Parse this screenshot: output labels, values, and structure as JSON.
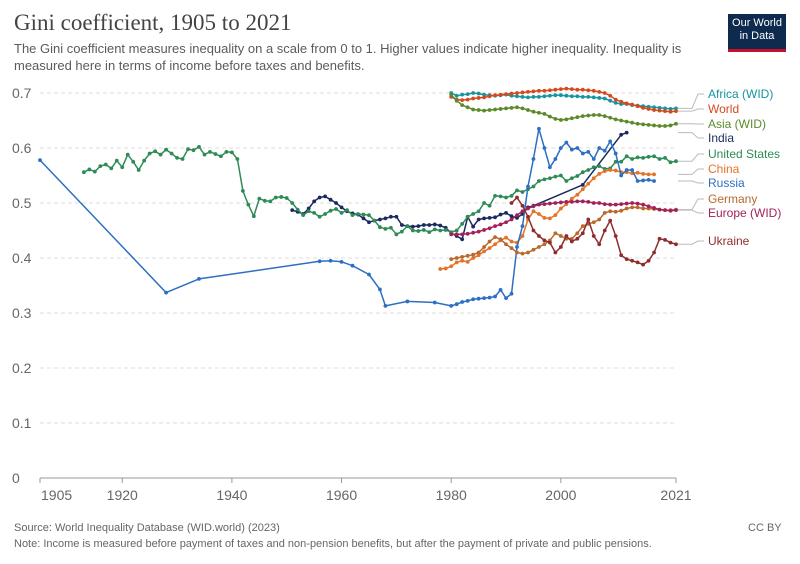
{
  "title": "Gini coefficient, 1905 to 2021",
  "subtitle": "The Gini coefficient measures inequality on a scale from 0 to 1. Higher values indicate higher inequality. Inequality is measured here in terms of income before taxes and benefits.",
  "logo": {
    "line1": "Our World",
    "line2": "in Data"
  },
  "source": "Source: World Inequality Database (WID.world) (2023)",
  "note": "Note: Income is measured before payment of taxes and non-pension benefits, but after the payment of private and public pensions.",
  "license": "CC BY",
  "chart_data": {
    "type": "line",
    "title": "Gini coefficient, 1905 to 2021",
    "xlabel": "",
    "ylabel": "",
    "xlim": [
      1905,
      2021
    ],
    "ylim": [
      0,
      0.7
    ],
    "x_ticks": [
      "1905",
      "1920",
      "1940",
      "1960",
      "1980",
      "2000",
      "2021"
    ],
    "x_tick_values": [
      1905,
      1920,
      1940,
      1960,
      1980,
      2000,
      2021
    ],
    "y_ticks": [
      "0",
      "0.1",
      "0.2",
      "0.3",
      "0.4",
      "0.5",
      "0.6",
      "0.7"
    ],
    "y_tick_values": [
      0,
      0.1,
      0.2,
      0.3,
      0.4,
      0.5,
      0.6,
      0.7
    ],
    "series": [
      {
        "name": "Africa (WID)",
        "color": "#16949f",
        "x": [
          1980,
          1981,
          1982,
          1983,
          1984,
          1985,
          1986,
          1987,
          1988,
          1989,
          1990,
          1991,
          1992,
          1993,
          1994,
          1995,
          1996,
          1997,
          1998,
          1999,
          2000,
          2001,
          2002,
          2003,
          2004,
          2005,
          2006,
          2007,
          2008,
          2009,
          2010,
          2011,
          2012,
          2013,
          2014,
          2015,
          2016,
          2017,
          2018,
          2019,
          2020,
          2021
        ],
        "y": [
          0.7,
          0.695,
          0.697,
          0.698,
          0.7,
          0.699,
          0.697,
          0.696,
          0.695,
          0.696,
          0.697,
          0.695,
          0.694,
          0.693,
          0.692,
          0.693,
          0.693,
          0.694,
          0.695,
          0.696,
          0.696,
          0.695,
          0.694,
          0.694,
          0.693,
          0.693,
          0.692,
          0.691,
          0.69,
          0.686,
          0.682,
          0.68,
          0.68,
          0.678,
          0.677,
          0.676,
          0.675,
          0.674,
          0.673,
          0.672,
          0.671,
          0.672
        ]
      },
      {
        "name": "World",
        "color": "#d44a1e",
        "x": [
          1980,
          1981,
          1982,
          1983,
          1984,
          1985,
          1986,
          1987,
          1988,
          1989,
          1990,
          1991,
          1992,
          1993,
          1994,
          1995,
          1996,
          1997,
          1998,
          1999,
          2000,
          2001,
          2002,
          2003,
          2004,
          2005,
          2006,
          2007,
          2008,
          2009,
          2010,
          2011,
          2012,
          2013,
          2014,
          2015,
          2016,
          2017,
          2018,
          2019,
          2020,
          2021
        ],
        "y": [
          0.693,
          0.688,
          0.687,
          0.688,
          0.69,
          0.691,
          0.692,
          0.694,
          0.696,
          0.697,
          0.698,
          0.699,
          0.7,
          0.701,
          0.702,
          0.703,
          0.704,
          0.704,
          0.705,
          0.706,
          0.707,
          0.708,
          0.707,
          0.706,
          0.706,
          0.705,
          0.704,
          0.702,
          0.7,
          0.695,
          0.688,
          0.684,
          0.681,
          0.679,
          0.676,
          0.673,
          0.671,
          0.669,
          0.668,
          0.667,
          0.666,
          0.667
        ]
      },
      {
        "name": "Asia (WID)",
        "color": "#5c8a2b",
        "x": [
          1980,
          1981,
          1982,
          1983,
          1984,
          1985,
          1986,
          1987,
          1988,
          1989,
          1990,
          1991,
          1992,
          1993,
          1994,
          1995,
          1996,
          1997,
          1998,
          1999,
          2000,
          2001,
          2002,
          2003,
          2004,
          2005,
          2006,
          2007,
          2008,
          2009,
          2010,
          2011,
          2012,
          2013,
          2014,
          2015,
          2016,
          2017,
          2018,
          2019,
          2020,
          2021
        ],
        "y": [
          0.697,
          0.686,
          0.678,
          0.674,
          0.67,
          0.669,
          0.668,
          0.669,
          0.67,
          0.671,
          0.672,
          0.673,
          0.674,
          0.672,
          0.669,
          0.666,
          0.664,
          0.662,
          0.657,
          0.653,
          0.651,
          0.652,
          0.654,
          0.656,
          0.658,
          0.659,
          0.66,
          0.66,
          0.658,
          0.655,
          0.652,
          0.65,
          0.648,
          0.646,
          0.644,
          0.643,
          0.642,
          0.641,
          0.64,
          0.64,
          0.641,
          0.644
        ]
      },
      {
        "name": "India",
        "color": "#1a2a5e",
        "x": [
          1951,
          1952,
          1953,
          1954,
          1955,
          1956,
          1957,
          1958,
          1959,
          1960,
          1961,
          1962,
          1963,
          1964,
          1965,
          1966,
          1967,
          1968,
          1969,
          1970,
          1971,
          1972,
          1973,
          1974,
          1975,
          1976,
          1977,
          1978,
          1979,
          1980,
          1981,
          1982,
          1983,
          1984,
          1985,
          1986,
          1987,
          1988,
          1989,
          1990,
          1991,
          1992,
          1993,
          1994,
          1995,
          2004,
          2011,
          2012
        ],
        "y": [
          0.487,
          0.484,
          0.48,
          0.49,
          0.503,
          0.51,
          0.512,
          0.506,
          0.5,
          0.492,
          0.485,
          0.481,
          0.479,
          0.472,
          0.465,
          0.468,
          0.47,
          0.472,
          0.475,
          0.475,
          0.46,
          0.458,
          0.457,
          0.458,
          0.46,
          0.46,
          0.461,
          0.459,
          0.455,
          0.445,
          0.44,
          0.434,
          0.475,
          0.457,
          0.47,
          0.472,
          0.473,
          0.474,
          0.479,
          0.482,
          0.476,
          0.473,
          0.48,
          0.492,
          0.495,
          0.533,
          0.624,
          0.628
        ]
      },
      {
        "name": "United States",
        "color": "#2e8b57",
        "x": [
          1913,
          1914,
          1915,
          1916,
          1917,
          1918,
          1919,
          1920,
          1921,
          1922,
          1923,
          1924,
          1925,
          1926,
          1927,
          1928,
          1929,
          1930,
          1931,
          1932,
          1933,
          1934,
          1935,
          1936,
          1937,
          1938,
          1939,
          1940,
          1941,
          1942,
          1943,
          1944,
          1945,
          1946,
          1947,
          1948,
          1949,
          1950,
          1951,
          1952,
          1953,
          1954,
          1955,
          1956,
          1957,
          1958,
          1959,
          1960,
          1961,
          1962,
          1963,
          1964,
          1965,
          1966,
          1967,
          1968,
          1969,
          1970,
          1971,
          1972,
          1973,
          1974,
          1975,
          1976,
          1977,
          1978,
          1979,
          1980,
          1981,
          1982,
          1983,
          1984,
          1985,
          1986,
          1987,
          1988,
          1989,
          1990,
          1991,
          1992,
          1993,
          1994,
          1995,
          1996,
          1997,
          1998,
          1999,
          2000,
          2001,
          2002,
          2003,
          2004,
          2005,
          2006,
          2007,
          2008,
          2009,
          2010,
          2011,
          2012,
          2013,
          2014,
          2015,
          2016,
          2017,
          2018,
          2019,
          2020,
          2021
        ],
        "y": [
          0.556,
          0.561,
          0.557,
          0.567,
          0.57,
          0.563,
          0.577,
          0.565,
          0.588,
          0.575,
          0.56,
          0.577,
          0.59,
          0.594,
          0.588,
          0.597,
          0.59,
          0.582,
          0.58,
          0.598,
          0.596,
          0.602,
          0.588,
          0.593,
          0.589,
          0.585,
          0.593,
          0.592,
          0.58,
          0.522,
          0.497,
          0.476,
          0.508,
          0.504,
          0.503,
          0.51,
          0.511,
          0.509,
          0.5,
          0.488,
          0.478,
          0.485,
          0.482,
          0.475,
          0.48,
          0.486,
          0.489,
          0.482,
          0.487,
          0.478,
          0.48,
          0.479,
          0.478,
          0.468,
          0.456,
          0.453,
          0.455,
          0.443,
          0.448,
          0.458,
          0.45,
          0.449,
          0.451,
          0.447,
          0.452,
          0.45,
          0.451,
          0.447,
          0.45,
          0.462,
          0.475,
          0.48,
          0.485,
          0.5,
          0.495,
          0.513,
          0.512,
          0.51,
          0.513,
          0.523,
          0.52,
          0.525,
          0.53,
          0.54,
          0.543,
          0.545,
          0.548,
          0.55,
          0.54,
          0.545,
          0.549,
          0.556,
          0.56,
          0.565,
          0.567,
          0.562,
          0.563,
          0.575,
          0.575,
          0.585,
          0.58,
          0.583,
          0.582,
          0.584,
          0.585,
          0.58,
          0.582,
          0.574,
          0.576
        ]
      },
      {
        "name": "China",
        "color": "#e37327",
        "x": [
          1978,
          1979,
          1980,
          1981,
          1982,
          1983,
          1984,
          1985,
          1986,
          1987,
          1988,
          1989,
          1990,
          1991,
          1992,
          1993,
          1994,
          1995,
          1996,
          1997,
          1998,
          1999,
          2000,
          2001,
          2002,
          2003,
          2004,
          2005,
          2006,
          2007,
          2008,
          2009,
          2010,
          2011,
          2012,
          2013,
          2014,
          2015,
          2016,
          2017
        ],
        "y": [
          0.38,
          0.381,
          0.385,
          0.392,
          0.395,
          0.393,
          0.4,
          0.405,
          0.412,
          0.418,
          0.425,
          0.432,
          0.437,
          0.43,
          0.428,
          0.44,
          0.47,
          0.485,
          0.48,
          0.473,
          0.472,
          0.478,
          0.49,
          0.498,
          0.508,
          0.515,
          0.525,
          0.535,
          0.545,
          0.553,
          0.558,
          0.56,
          0.559,
          0.556,
          0.556,
          0.554,
          0.555,
          0.553,
          0.552,
          0.552
        ]
      },
      {
        "name": "Russia",
        "color": "#2d6fc2",
        "x": [
          1905,
          1928,
          1934,
          1956,
          1958,
          1960,
          1962,
          1965,
          1967,
          1968,
          1972,
          1977,
          1980,
          1981,
          1982,
          1983,
          1984,
          1985,
          1986,
          1987,
          1988,
          1989,
          1990,
          1991,
          1992,
          1993,
          1994,
          1995,
          1996,
          1997,
          1998,
          1999,
          2000,
          2001,
          2002,
          2003,
          2004,
          2005,
          2006,
          2007,
          2008,
          2009,
          2010,
          2011,
          2012,
          2013,
          2014,
          2015,
          2016,
          2017
        ],
        "y": [
          0.578,
          0.337,
          0.362,
          0.394,
          0.395,
          0.393,
          0.386,
          0.37,
          0.343,
          0.313,
          0.321,
          0.319,
          0.313,
          0.316,
          0.32,
          0.322,
          0.325,
          0.326,
          0.327,
          0.328,
          0.33,
          0.342,
          0.327,
          0.335,
          0.42,
          0.458,
          0.53,
          0.58,
          0.635,
          0.6,
          0.565,
          0.58,
          0.6,
          0.61,
          0.597,
          0.6,
          0.59,
          0.593,
          0.58,
          0.6,
          0.595,
          0.612,
          0.59,
          0.55,
          0.56,
          0.56,
          0.54,
          0.541,
          0.542,
          0.54
        ]
      },
      {
        "name": "Germany",
        "color": "#b86a2e",
        "x": [
          1980,
          1981,
          1982,
          1983,
          1984,
          1985,
          1986,
          1987,
          1988,
          1989,
          1990,
          1991,
          1992,
          1993,
          1994,
          1995,
          1996,
          1997,
          1998,
          1999,
          2000,
          2001,
          2002,
          2003,
          2004,
          2005,
          2006,
          2007,
          2008,
          2009,
          2010,
          2011,
          2012,
          2013,
          2014,
          2015,
          2016,
          2017,
          2018,
          2019,
          2020,
          2021
        ],
        "y": [
          0.398,
          0.4,
          0.402,
          0.404,
          0.406,
          0.41,
          0.42,
          0.43,
          0.438,
          0.434,
          0.425,
          0.418,
          0.41,
          0.408,
          0.41,
          0.415,
          0.42,
          0.425,
          0.432,
          0.445,
          0.44,
          0.435,
          0.435,
          0.445,
          0.458,
          0.462,
          0.465,
          0.47,
          0.482,
          0.485,
          0.484,
          0.486,
          0.49,
          0.492,
          0.492,
          0.49,
          0.49,
          0.489,
          0.488,
          0.487,
          0.487,
          0.488
        ]
      },
      {
        "name": "Europe (WID)",
        "color": "#a2215b",
        "x": [
          1980,
          1981,
          1982,
          1983,
          1984,
          1985,
          1986,
          1987,
          1988,
          1989,
          1990,
          1991,
          1992,
          1993,
          1994,
          1995,
          1996,
          1997,
          1998,
          1999,
          2000,
          2001,
          2002,
          2003,
          2004,
          2005,
          2006,
          2007,
          2008,
          2009,
          2010,
          2011,
          2012,
          2013,
          2014,
          2015,
          2016,
          2017,
          2018,
          2019,
          2020,
          2021
        ],
        "y": [
          0.443,
          0.443,
          0.443,
          0.444,
          0.446,
          0.448,
          0.451,
          0.454,
          0.458,
          0.461,
          0.465,
          0.47,
          0.478,
          0.485,
          0.49,
          0.494,
          0.497,
          0.498,
          0.499,
          0.5,
          0.501,
          0.502,
          0.502,
          0.503,
          0.503,
          0.502,
          0.5,
          0.5,
          0.498,
          0.497,
          0.497,
          0.498,
          0.499,
          0.5,
          0.499,
          0.497,
          0.494,
          0.491,
          0.488,
          0.487,
          0.486,
          0.487
        ]
      },
      {
        "name": "Ukraine",
        "color": "#8f2d2d",
        "x": [
          1991,
          1992,
          1993,
          1994,
          1995,
          1996,
          1997,
          1998,
          1999,
          2000,
          2001,
          2002,
          2003,
          2004,
          2005,
          2006,
          2007,
          2008,
          2009,
          2010,
          2011,
          2012,
          2013,
          2014,
          2015,
          2016,
          2017,
          2018,
          2019,
          2020,
          2021
        ],
        "y": [
          0.5,
          0.51,
          0.495,
          0.475,
          0.45,
          0.44,
          0.432,
          0.428,
          0.41,
          0.42,
          0.44,
          0.43,
          0.435,
          0.445,
          0.47,
          0.44,
          0.425,
          0.45,
          0.468,
          0.44,
          0.405,
          0.398,
          0.395,
          0.392,
          0.388,
          0.395,
          0.41,
          0.435,
          0.433,
          0.428,
          0.425
        ]
      }
    ],
    "labels": [
      {
        "text": "Africa (WID)",
        "color": "#16949f"
      },
      {
        "text": "World",
        "color": "#d44a1e"
      },
      {
        "text": "Asia (WID)",
        "color": "#5c8a2b"
      },
      {
        "text": "India",
        "color": "#1a2a5e"
      },
      {
        "text": "United States",
        "color": "#2e8b57"
      },
      {
        "text": "China",
        "color": "#e37327"
      },
      {
        "text": "Russia",
        "color": "#2d6fc2"
      },
      {
        "text": "Germany",
        "color": "#b86a2e"
      },
      {
        "text": "Europe (WID)",
        "color": "#a2215b"
      },
      {
        "text": "Ukraine",
        "color": "#8f2d2d"
      }
    ]
  }
}
